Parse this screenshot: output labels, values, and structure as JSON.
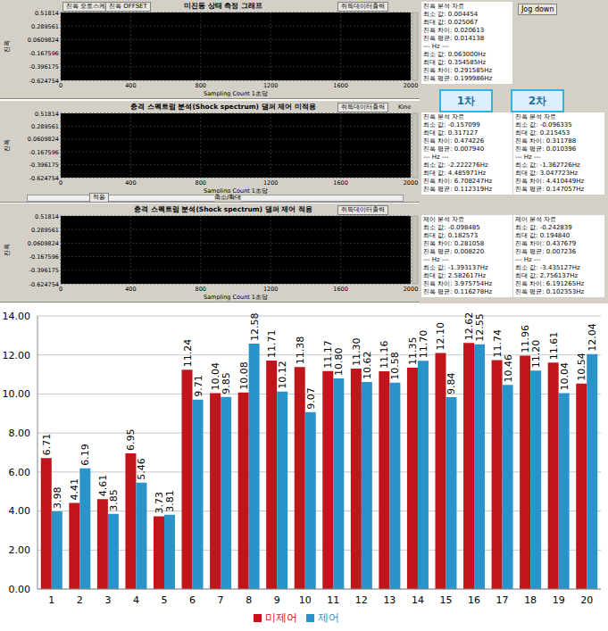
{
  "screenshot": {
    "panels": [
      {
        "buttons": [
          "진폭 오토스케일",
          "진폭 OFFSET"
        ],
        "title": "미진동 상태 측정 그래프",
        "output_button": "취득데이터출력",
        "y_title": "진폭",
        "ylim": [
          -0.624754,
          0.51814
        ],
        "yticks": [
          0.51814,
          0.289561,
          0.0609824,
          -0.167596,
          -0.396175,
          -0.624754
        ],
        "x_title": "Sampling Count 1초당",
        "xlim": [
          0,
          2000
        ],
        "xticks": [
          0,
          400,
          800,
          1200,
          1600,
          2000
        ],
        "side_button": "Jog down",
        "stats": [
          [
            "진폭 분석 자료",
            "최소 값: 0.004454",
            "최대 값: 0.025067",
            "진폭 차이: 0.020613",
            "진폭 평균: 0.014138",
            "--- Hz ---",
            "최소 값: 0.063000Hz",
            "최대 값: 0.354585Hz",
            "진폭 차이: 0.291585Hz",
            "진폭 평균: 0.199986Hz"
          ]
        ]
      },
      {
        "title": "충격 스펙트럼 분석(Shock spectrum) 댐퍼 제어 미적용",
        "output_button": "취득데이터출력",
        "y_title": "진폭",
        "ylim": [
          -0.624754,
          0.51814
        ],
        "yticks": [
          0.51814,
          0.289561,
          0.0609824,
          -0.167596,
          -0.396175,
          -0.624754
        ],
        "x_title": "Sampling Count 1초당",
        "xlim": [
          0,
          2000
        ],
        "xticks": [
          0,
          400,
          800,
          1200,
          1600,
          2000
        ],
        "side_label": "Kine",
        "slider_button": "적용",
        "slider_label": "축소/확대",
        "stats": [
          [
            "진폭 분석 자료",
            "최소 값: -0.157099",
            "최대 값: 0.317127",
            "진폭 차이: 0.474226",
            "진폭 평균: 0.007940",
            "--- Hz ---",
            "최소 값: -2.222276Hz",
            "최대 값: 4.485971Hz",
            "진폭 차이: 6.708247Hz",
            "진폭 평균: 0.112319Hz"
          ],
          [
            "진폭 분석 자료",
            "최소 값: -0.096335",
            "최대 값: 0.215453",
            "진폭 차이: 0.311788",
            "진폭 평균: 0.010396",
            "--- Hz ---",
            "최소 값: -1.362726Hz",
            "최대 값: 3.047723Hz",
            "진폭 차이: 4.410449Hz",
            "진폭 평균: 0.147057Hz"
          ]
        ]
      },
      {
        "title": "충격 스펙트럼 분석(Shock spectrum) 댐퍼 제어 적용",
        "output_button": "취득데이터출력",
        "y_title": "진폭",
        "ylim": [
          -0.624754,
          0.51814
        ],
        "yticks": [
          0.51814,
          0.289561,
          0.0609824,
          -0.167596,
          -0.396175,
          -0.624754
        ],
        "x_title": "Sampling Count 1초당",
        "xlim": [
          0,
          2000
        ],
        "xticks": [
          0,
          400,
          800,
          1200,
          1600,
          2000
        ],
        "stats": [
          [
            "제어 분석 자료",
            "최소 값: -0.098485",
            "최대 값: 0.182573",
            "진폭 차이: 0.281058",
            "진폭 평균: 0.008220",
            "--- Hz ---",
            "최소 값: -1.393137Hz",
            "최대 값: 2.582617Hz",
            "진폭 차이: 3.975754Hz",
            "진폭 평균: 0.116278Hz"
          ],
          [
            "제어 분석 자료",
            "최소 값: -0.242839",
            "최대 값: 0.194840",
            "진폭 차이: 0.437679",
            "진폭 평균: 0.007236",
            "--- Hz ---",
            "최소 값: -3.435127Hz",
            "최대 값: 2.756137Hz",
            "진폭 차이: 6.191265Hz",
            "진폭 평균: 0.102353Hz"
          ]
        ]
      }
    ],
    "tabs": [
      "1차",
      "2차"
    ]
  },
  "chart_data": {
    "type": "bar",
    "categories": [
      "1",
      "2",
      "3",
      "4",
      "5",
      "6",
      "7",
      "8",
      "9",
      "10",
      "11",
      "12",
      "13",
      "14",
      "15",
      "16",
      "17",
      "18",
      "19",
      "20"
    ],
    "series": [
      {
        "name": "미제어",
        "color": "#c0161b",
        "values": [
          6.71,
          4.41,
          4.61,
          6.95,
          3.73,
          11.24,
          10.04,
          10.08,
          11.71,
          11.38,
          11.17,
          11.3,
          11.16,
          11.35,
          12.1,
          12.62,
          11.74,
          11.96,
          11.61,
          10.54
        ],
        "value_labels": [
          "6.71",
          "4.41",
          "4.61",
          "6.95",
          "3.73",
          "11.24",
          "10.04",
          "10.08",
          "11.71",
          "11.38",
          "11.17",
          "11.30",
          "11.16",
          "11.35",
          "12.10",
          "12.62",
          "11.74",
          "11.96",
          "11.61",
          "10.54"
        ]
      },
      {
        "name": "제어",
        "color": "#2a93c9",
        "values": [
          3.98,
          6.19,
          3.85,
          5.46,
          3.81,
          9.71,
          9.85,
          12.58,
          10.12,
          9.07,
          10.8,
          10.62,
          10.58,
          11.7,
          9.84,
          12.55,
          10.46,
          11.2,
          10.04,
          12.04
        ],
        "value_labels": [
          "3.98",
          "6.19",
          "3.85",
          "5.46",
          "3.81",
          "9.71",
          "9.85",
          "12.58",
          "10.12",
          "9.07",
          "10.80",
          "10.62",
          "10.58",
          "11.70",
          "9.84",
          "12.55",
          "10.46",
          "11.20",
          "10.04",
          "12.04"
        ]
      }
    ],
    "ylim": [
      0,
      14
    ],
    "yticks": [
      {
        "value": 0,
        "label": "0.00"
      },
      {
        "value": 2,
        "label": "2.00"
      },
      {
        "value": 4,
        "label": "4.00"
      },
      {
        "value": 6,
        "label": "6.00"
      },
      {
        "value": 8,
        "label": "8.00"
      },
      {
        "value": 10,
        "label": "10.00"
      },
      {
        "value": 12,
        "label": "12.00"
      },
      {
        "value": 14,
        "label": "14.00"
      }
    ],
    "grid": true,
    "legend": "bottom",
    "data_labels": true
  }
}
